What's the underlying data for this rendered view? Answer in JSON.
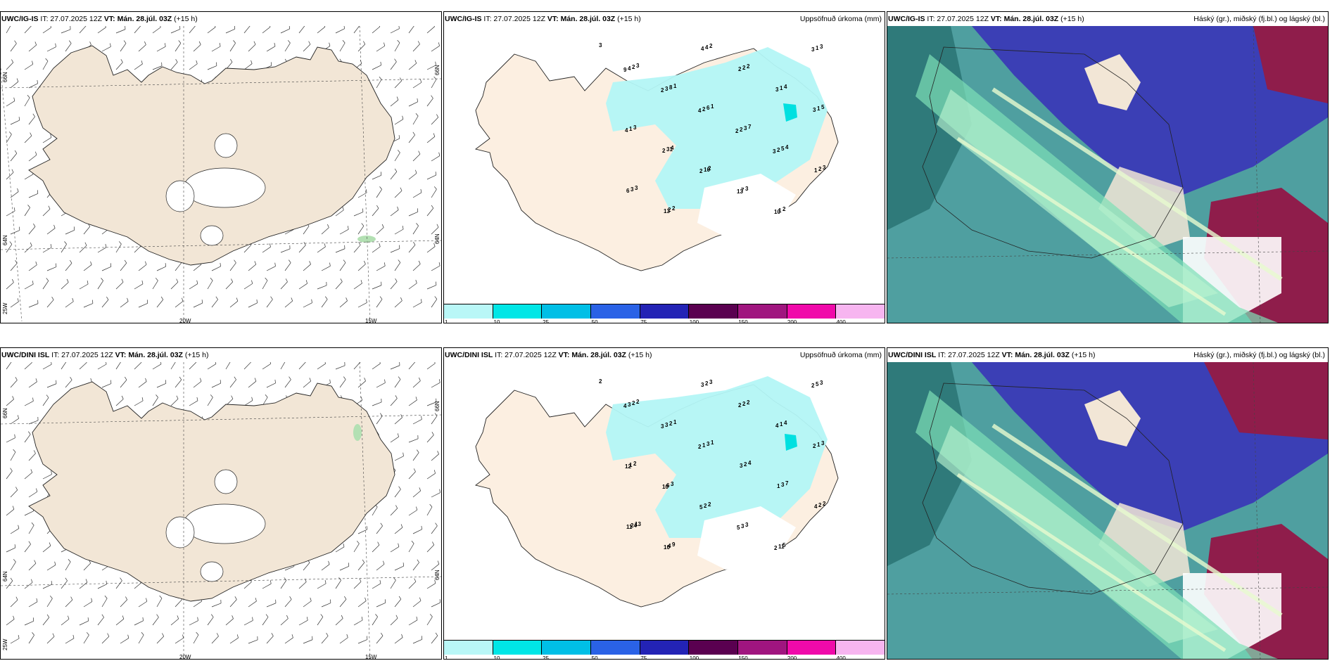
{
  "panels": {
    "p1": {
      "model": "UWC/IG-IS",
      "it": "IT: 27.07.2025 12Z",
      "vt": "VT: Mán. 28.júl. 03Z",
      "lead": "(+15 h)",
      "title": ""
    },
    "p2": {
      "model": "UWC/IG-IS",
      "it": "IT: 27.07.2025 12Z",
      "vt": "VT: Mán. 28.júl. 03Z",
      "lead": "(+15 h)",
      "title": "Uppsöfnuð úrkoma (mm)"
    },
    "p3": {
      "model": "UWC/IG-IS",
      "it": "IT: 27.07.2025 12Z",
      "vt": "VT: Mán. 28.júl. 03Z",
      "lead": "(+15 h)",
      "title": "Háský (gr.), miðský (fj.bl.) og lágský (bl.)"
    },
    "p4": {
      "model": "UWC/DINI ISL",
      "it": "IT: 27.07.2025 12Z",
      "vt": "VT: Mán. 28.júl. 03Z",
      "lead": "(+15 h)",
      "title": ""
    },
    "p5": {
      "model": "UWC/DINI ISL",
      "it": "IT: 27.07.2025 12Z",
      "vt": "VT: Mán. 28.júl. 03Z",
      "lead": "(+15 h)",
      "title": "Uppsöfnuð úrkoma (mm)"
    },
    "p6": {
      "model": "UWC/DINI ISL",
      "it": "IT: 27.07.2025 12Z",
      "vt": "VT: Mán. 28.júl. 03Z",
      "lead": "(+15 h)",
      "title": "Háský (gr.), miðský (fj.bl.) og lágský (bl.)"
    }
  },
  "axis": {
    "lat66": "66N",
    "lat64": "64N",
    "lon25": "25W",
    "lon20": "20W",
    "lon15": "15W"
  },
  "colorbar": {
    "ticks": [
      "1",
      "10",
      "25",
      "50",
      "75",
      "100",
      "150",
      "200",
      "400"
    ],
    "colors": [
      "#b9f7f7",
      "#00e6e6",
      "#00bfe6",
      "#2a62e6",
      "#2323b5",
      "#5a0050",
      "#a0157f",
      "#f00aaa",
      "#f7b5f0"
    ]
  },
  "colors": {
    "land": "#f2e6d6",
    "precip": "#b3f5f5",
    "precip_dark": "#00e0e0",
    "high_cloud": "#4ecfa2",
    "mid_cloud": "#3b3fb5",
    "low_cloud": "#8f1d4b",
    "ocean_teal": "#2f7a7a",
    "wind_green": "#b3e0b3"
  },
  "precip_top": [
    "3",
    "3",
    "1",
    "1",
    "7",
    "4",
    "3",
    "3",
    "2",
    "2",
    "2",
    "4",
    "5",
    "3",
    "4",
    "2",
    "3",
    "2",
    "3",
    "2",
    "8",
    "6",
    "3",
    "5",
    "2",
    "3",
    "2",
    "4",
    "2",
    "1",
    "1",
    "1",
    "31",
    "10",
    "7",
    "1",
    "1",
    "4",
    "3",
    "2",
    "2",
    "2",
    "1",
    "6",
    "13",
    "4",
    "2",
    "3",
    "3",
    "4",
    "2",
    "2",
    "13",
    "10",
    "3",
    "9",
    "2",
    "4",
    "2",
    "3"
  ],
  "precip_bot": [
    "2",
    "2",
    "1",
    "1",
    "4",
    "7",
    "2",
    "13",
    "9",
    "3",
    "2",
    "4",
    "3",
    "2",
    "3",
    "2",
    "3",
    "5",
    "3",
    "2",
    "2",
    "3",
    "2",
    "3",
    "2",
    "24",
    "4",
    "2",
    "2",
    "1",
    "1",
    "1",
    "6",
    "2",
    "3",
    "11",
    "5",
    "3",
    "3",
    "1",
    "3",
    "1",
    "4",
    "11",
    "10",
    "3",
    "2",
    "4",
    "2",
    "12",
    "10",
    "5",
    "5",
    "2",
    "2",
    "4",
    "3",
    "2"
  ]
}
